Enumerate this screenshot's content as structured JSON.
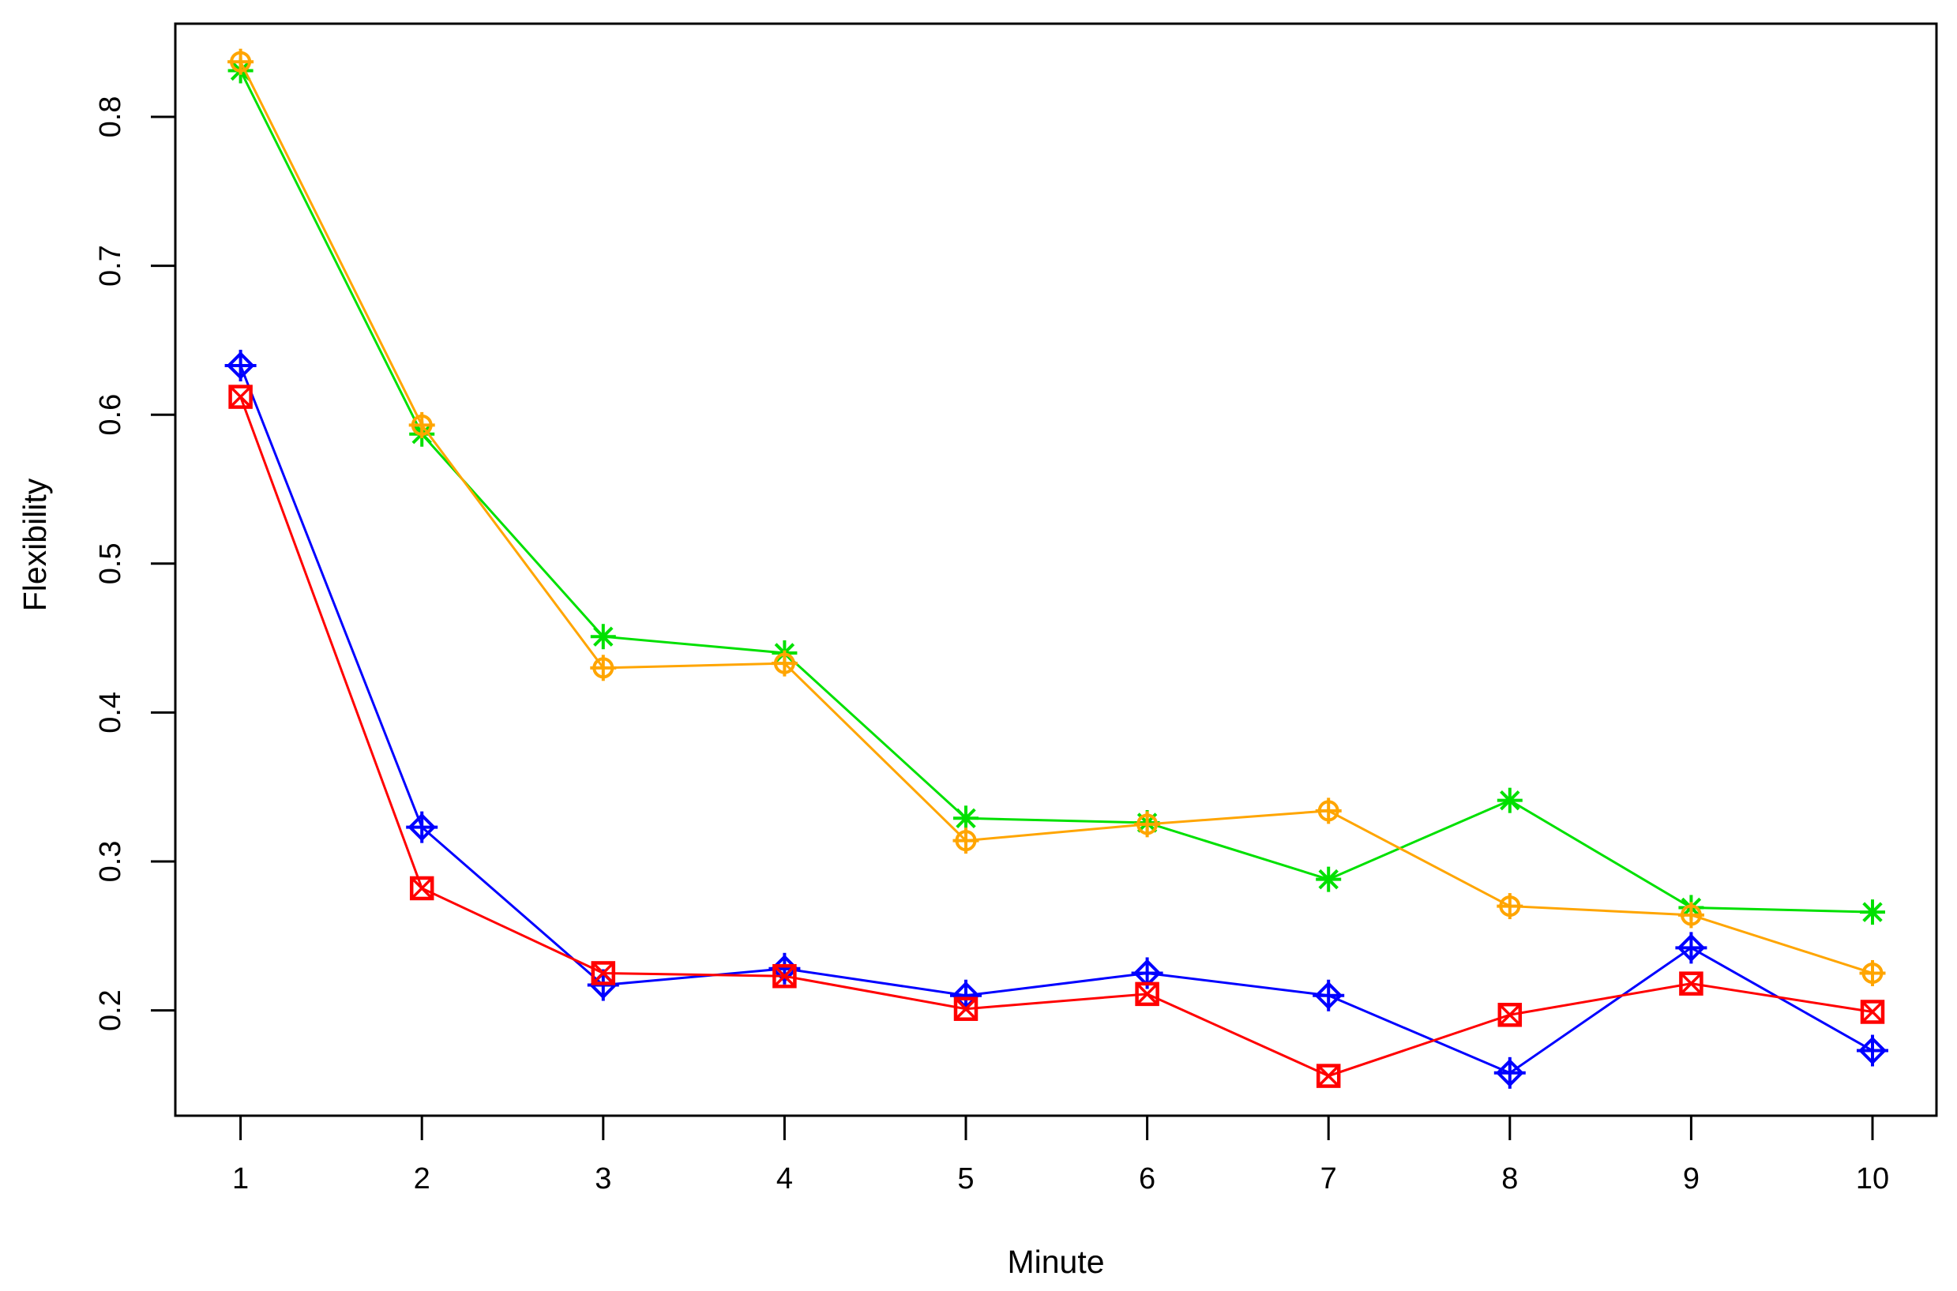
{
  "chart_data": {
    "type": "line",
    "title": "",
    "xlabel": "Minute",
    "ylabel": "Flexibility",
    "x": [
      1,
      2,
      3,
      4,
      5,
      6,
      7,
      8,
      9,
      10
    ],
    "x_tick_labels": [
      "1",
      "2",
      "3",
      "4",
      "5",
      "6",
      "7",
      "8",
      "9",
      "10"
    ],
    "y_ticks": [
      0.2,
      0.3,
      0.4,
      0.5,
      0.6,
      0.7,
      0.8
    ],
    "y_tick_labels": [
      "0.2",
      "0.3",
      "0.4",
      "0.5",
      "0.6",
      "0.7",
      "0.8"
    ],
    "xlim": [
      0.64,
      10.35
    ],
    "ylim": [
      0.129,
      0.863
    ],
    "grid": false,
    "legend": "none",
    "axis_color": "#000000",
    "series": [
      {
        "name": "green-asterisk",
        "color": "#00E000",
        "marker": "asterisk",
        "values": [
          0.831,
          0.587,
          0.451,
          0.44,
          0.329,
          0.326,
          0.288,
          0.341,
          0.269,
          0.266
        ]
      },
      {
        "name": "orange-circle-plus",
        "color": "#FFA500",
        "marker": "circle-plus",
        "values": [
          0.837,
          0.593,
          0.43,
          0.433,
          0.314,
          0.325,
          0.334,
          0.27,
          0.264,
          0.225
        ]
      },
      {
        "name": "blue-diamond-plus",
        "color": "#0000FF",
        "marker": "diamond-plus",
        "values": [
          0.633,
          0.323,
          0.217,
          0.228,
          0.21,
          0.225,
          0.21,
          0.158,
          0.242,
          0.173
        ]
      },
      {
        "name": "red-square-x",
        "color": "#FF0000",
        "marker": "square-x",
        "values": [
          0.612,
          0.282,
          0.225,
          0.223,
          0.201,
          0.211,
          0.156,
          0.197,
          0.218,
          0.199
        ]
      }
    ]
  }
}
